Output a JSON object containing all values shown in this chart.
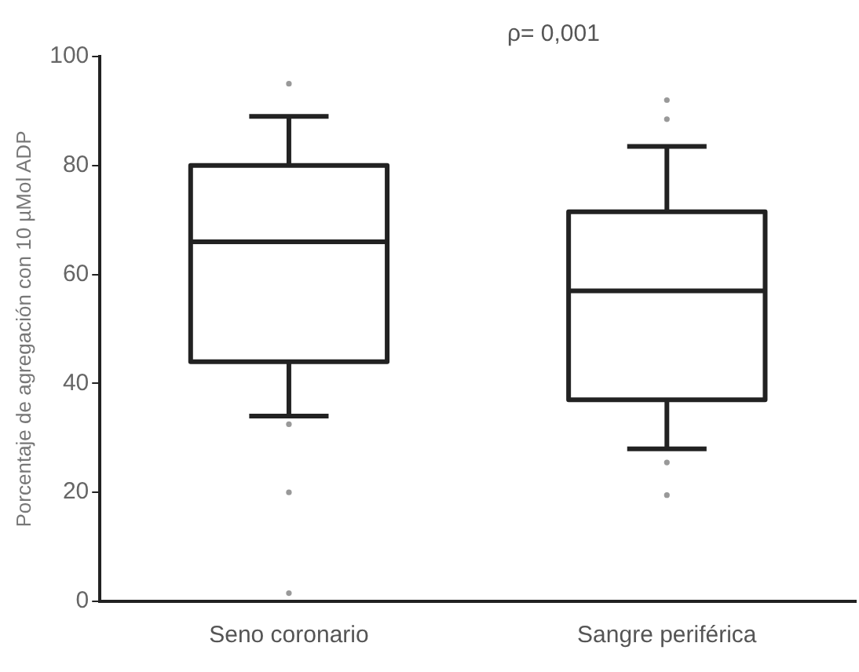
{
  "chart_data": {
    "type": "box",
    "ylabel": "Porcentaje de agregación con 10 µMol ADP",
    "categories": [
      "Seno coronario",
      "Sangre periférica"
    ],
    "boxes": [
      {
        "low": 34,
        "q1": 44,
        "median": 66,
        "q3": 80,
        "high": 89,
        "outliers": [
          95,
          32.5,
          20,
          1.5
        ]
      },
      {
        "low": 28,
        "q1": 37,
        "median": 57,
        "q3": 71.5,
        "high": 83.5,
        "outliers": [
          92,
          88.5,
          25.5,
          19.5
        ]
      }
    ],
    "color": "#222222",
    "ylim": [
      0,
      100
    ],
    "yticks": [
      0,
      20,
      40,
      60,
      80,
      100
    ],
    "grid": false,
    "annotations": [
      "ρ= 0,001"
    ]
  }
}
